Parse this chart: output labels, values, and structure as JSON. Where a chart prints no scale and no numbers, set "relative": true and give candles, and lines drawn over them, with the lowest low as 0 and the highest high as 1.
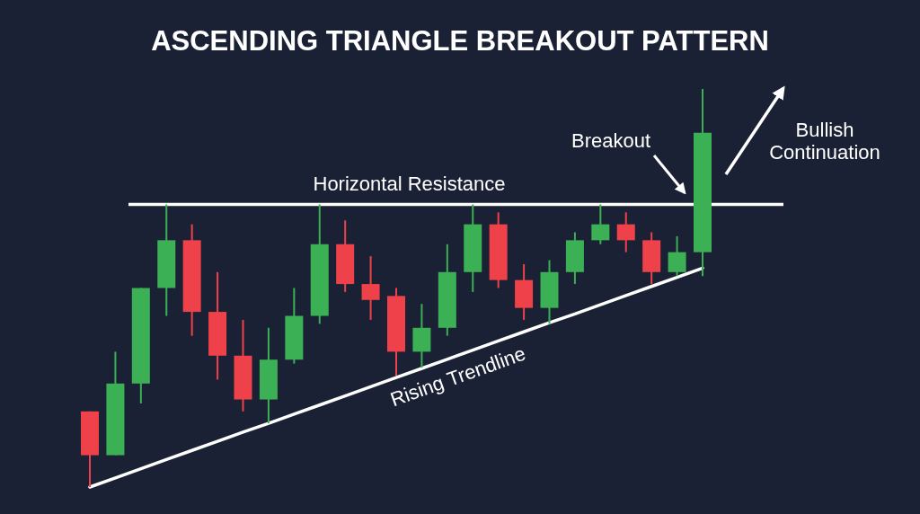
{
  "chart_data": {
    "type": "candlestick",
    "title": "ASCENDING TRIANGLE BREAKOUT PATTERN",
    "relative": true,
    "tick_labels": false,
    "categories": [
      null,
      null,
      null,
      null,
      null,
      null,
      null,
      null,
      null,
      null,
      null,
      null,
      null,
      null,
      null,
      null,
      null,
      null,
      null,
      null,
      null,
      null,
      null,
      null,
      null
    ],
    "ohlc": [
      [
        0.19,
        0.19,
        0,
        0.08
      ],
      [
        0.08,
        0.34,
        0.08,
        0.26
      ],
      [
        0.26,
        0.5,
        0.21,
        0.5
      ],
      [
        0.5,
        0.71,
        0.43,
        0.62
      ],
      [
        0.62,
        0.66,
        0.38,
        0.44
      ],
      [
        0.44,
        0.54,
        0.27,
        0.33
      ],
      [
        0.33,
        0.42,
        0.19,
        0.22
      ],
      [
        0.22,
        0.4,
        0.16,
        0.32
      ],
      [
        0.32,
        0.5,
        0.31,
        0.43
      ],
      [
        0.43,
        0.71,
        0.41,
        0.61
      ],
      [
        0.61,
        0.67,
        0.49,
        0.51
      ],
      [
        0.51,
        0.58,
        0.42,
        0.47
      ],
      [
        0.48,
        0.5,
        0.28,
        0.34
      ],
      [
        0.34,
        0.46,
        0.3,
        0.4
      ],
      [
        0.4,
        0.61,
        0.38,
        0.54
      ],
      [
        0.54,
        0.71,
        0.49,
        0.66
      ],
      [
        0.66,
        0.69,
        0.5,
        0.52
      ],
      [
        0.52,
        0.56,
        0.42,
        0.45
      ],
      [
        0.45,
        0.57,
        0.41,
        0.54
      ],
      [
        0.54,
        0.64,
        0.51,
        0.62
      ],
      [
        0.62,
        0.71,
        0.61,
        0.66
      ],
      [
        0.66,
        0.69,
        0.59,
        0.62
      ],
      [
        0.62,
        0.64,
        0.51,
        0.54
      ],
      [
        0.54,
        0.63,
        0.53,
        0.59
      ],
      [
        0.59,
        1,
        0.53,
        0.89
      ]
    ],
    "colors": [
      "#ef4149",
      "#3bb054",
      "#3bb054",
      "#3bb054",
      "#ef4149",
      "#ef4149",
      "#ef4149",
      "#3bb054",
      "#3bb054",
      "#3bb054",
      "#ef4149",
      "#ef4149",
      "#ef4149",
      "#3bb054",
      "#3bb054",
      "#3bb054",
      "#ef4149",
      "#ef4149",
      "#3bb054",
      "#3bb054",
      "#3bb054",
      "#ef4149",
      "#ef4149",
      "#3bb054",
      "#3bb054"
    ],
    "series": [
      {
        "type": "line",
        "name": "Rising Trendline",
        "color": "#ffffff",
        "values": [
          0,
          0.023,
          0.046,
          0.069,
          0.092,
          0.115,
          0.138,
          0.16,
          0.183,
          0.206,
          0.229,
          0.252,
          0.275,
          0.298,
          0.321,
          0.344,
          0.367,
          0.39,
          0.413,
          0.435,
          0.458,
          0.481,
          0.504,
          0.527,
          0.55
        ]
      }
    ],
    "ref_lines": [
      {
        "axis": "y",
        "value": 0.71,
        "label": "Horizontal Resistance",
        "color": "#ffffff"
      }
    ],
    "annotations": [
      "Breakout",
      "Bullish Continuation"
    ]
  }
}
